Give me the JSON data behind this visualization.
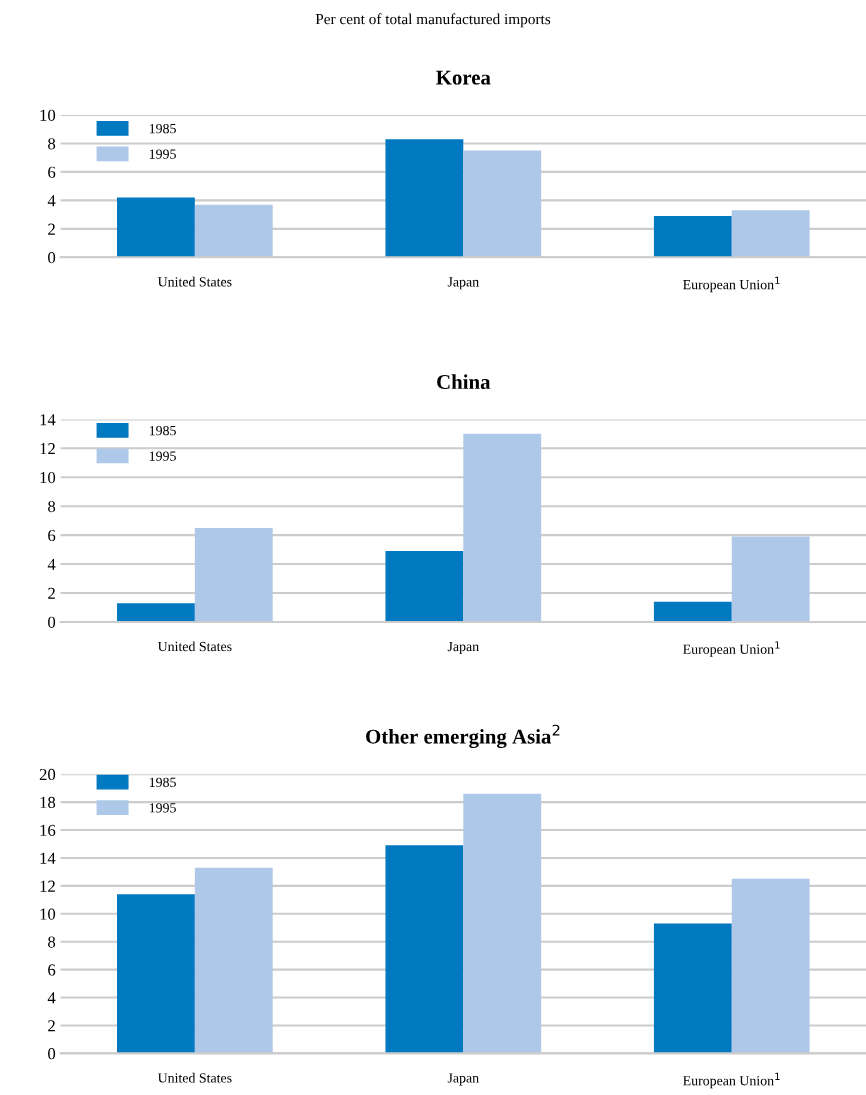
{
  "chart_data": [
    {
      "type": "bar",
      "subtitle": "Per cent of total manufactured imports",
      "title": "Korea",
      "categories": [
        "United States",
        "Japan",
        "European Union$^{1}$"
      ],
      "series": [
        {
          "name": "1985",
          "color": "#0079c1",
          "values": [
            4.2,
            8.3,
            2.9
          ]
        },
        {
          "name": "1995",
          "color": "#adc8e8",
          "values": [
            3.7,
            7.5,
            3.3
          ]
        }
      ],
      "ylim": [
        0,
        10
      ],
      "yticks": [
        0,
        2,
        4,
        6,
        8,
        10
      ],
      "grid": "y",
      "legend": "top left"
    },
    {
      "type": "bar",
      "title": "China",
      "categories": [
        "United States",
        "Japan",
        "European Union$^{1}$"
      ],
      "series": [
        {
          "name": "1985",
          "color": "#0079c1",
          "values": [
            1.3,
            4.9,
            1.4
          ]
        },
        {
          "name": "1995",
          "color": "#adc8e8",
          "values": [
            6.5,
            13.0,
            5.9
          ]
        }
      ],
      "ylim": [
        0,
        14
      ],
      "yticks": [
        0,
        2,
        4,
        6,
        8,
        10,
        12,
        14
      ],
      "grid": "y",
      "legend": "top left"
    },
    {
      "type": "bar",
      "title": "Other emerging Asia$^{2}$",
      "categories": [
        "United States",
        "Japan",
        "European Union$^{1}$"
      ],
      "series": [
        {
          "name": "1985",
          "color": "#0079c1",
          "values": [
            11.4,
            14.9,
            9.3
          ]
        },
        {
          "name": "1995",
          "color": "#adc8e8",
          "values": [
            13.3,
            18.6,
            12.5
          ]
        }
      ],
      "ylim": [
        0,
        20
      ],
      "yticks": [
        0,
        2,
        4,
        6,
        8,
        10,
        12,
        14,
        16,
        18,
        20
      ],
      "grid": "y",
      "legend": "top left"
    }
  ]
}
